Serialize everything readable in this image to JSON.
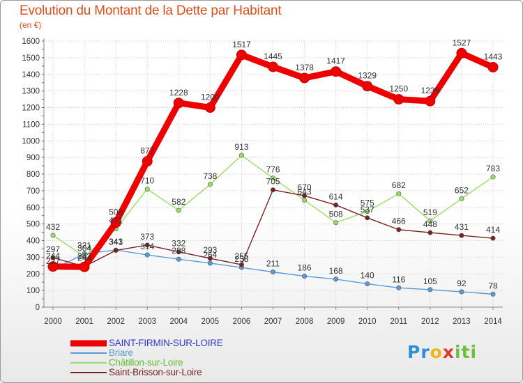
{
  "title": "Evolution du Montant de la Dette par Habitant",
  "subtitle": "(en €)",
  "logo": {
    "text": "Proxiti",
    "letters": [
      "P",
      "r",
      "o",
      "x",
      "i",
      "t",
      "i"
    ]
  },
  "chart_data": {
    "type": "line",
    "x": [
      "2000",
      "2001",
      "2002",
      "2003",
      "2004",
      "2005",
      "2006",
      "2007",
      "2008",
      "2009",
      "2010",
      "2011",
      "2012",
      "2013",
      "2014"
    ],
    "ylim": [
      0,
      1600
    ],
    "yticks": [
      0,
      100,
      200,
      300,
      400,
      500,
      600,
      700,
      800,
      900,
      1000,
      1100,
      1200,
      1300,
      1400,
      1500,
      1600
    ],
    "grid": true,
    "legend_position": "bottom-left",
    "series": [
      {
        "name": "SAINT-FIRMIN-SUR-LOIRE",
        "color": "#ee0000",
        "legend_color": "#3333cc",
        "values": [
          244,
          242,
          508,
          877,
          1228,
          1200,
          1517,
          1445,
          1378,
          1417,
          1329,
          1250,
          1239,
          1527,
          1443
        ]
      },
      {
        "name": "Briare",
        "color": "#5b9bd5",
        "legend_color": "#5b9bd5",
        "values": [
          227,
          321,
          343,
          314,
          288,
          264,
          238,
          211,
          186,
          168,
          140,
          116,
          105,
          92,
          78
        ]
      },
      {
        "name": "Châtillon-sur-Loire",
        "color": "#99dd66",
        "legend_color": "#66bb33",
        "values": [
          432,
          304,
          471,
          710,
          582,
          738,
          913,
          776,
          643,
          508,
          575,
          682,
          519,
          652,
          783
        ]
      },
      {
        "name": "Saint-Brisson-sur-Loire",
        "color": "#7a2222",
        "legend_color": "#7a2222",
        "values": [
          297,
          244,
          341,
          373,
          332,
          293,
          255,
          705,
          670,
          614,
          537,
          466,
          448,
          431,
          414
        ]
      }
    ]
  }
}
